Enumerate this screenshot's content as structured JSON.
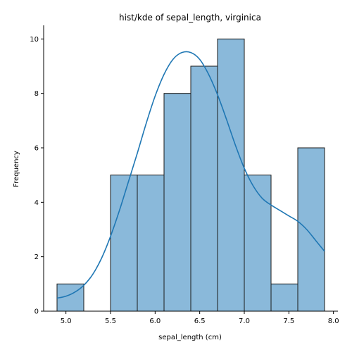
{
  "chart_data": {
    "type": "histogram",
    "title": "hist/kde of sepal_length, virginica",
    "xlabel": "sepal_length (cm)",
    "ylabel": "Frequency",
    "xlim": [
      4.75,
      8.05
    ],
    "ylim": [
      0,
      10.5
    ],
    "xticks": [
      5.0,
      5.5,
      6.0,
      6.5,
      7.0,
      7.5,
      8.0
    ],
    "xtick_labels": [
      "5.0",
      "5.5",
      "6.0",
      "6.5",
      "7.0",
      "7.5",
      "8.0"
    ],
    "yticks": [
      0,
      2,
      4,
      6,
      8,
      10
    ],
    "ytick_labels": [
      "0",
      "2",
      "4",
      "6",
      "8",
      "10"
    ],
    "bins": [
      {
        "start": 4.9,
        "end": 5.2,
        "count": 1
      },
      {
        "start": 5.2,
        "end": 5.5,
        "count": 0
      },
      {
        "start": 5.5,
        "end": 5.8,
        "count": 5
      },
      {
        "start": 5.8,
        "end": 6.1,
        "count": 5
      },
      {
        "start": 6.1,
        "end": 6.4,
        "count": 8
      },
      {
        "start": 6.4,
        "end": 6.7,
        "count": 9
      },
      {
        "start": 6.7,
        "end": 7.0,
        "count": 10
      },
      {
        "start": 7.0,
        "end": 7.3,
        "count": 5
      },
      {
        "start": 7.3,
        "end": 7.6,
        "count": 1
      },
      {
        "start": 7.6,
        "end": 7.9,
        "count": 6
      }
    ],
    "kde": {
      "x": [
        4.9,
        5.0,
        5.1,
        5.2,
        5.3,
        5.4,
        5.5,
        5.6,
        5.7,
        5.8,
        5.9,
        6.0,
        6.1,
        6.2,
        6.3,
        6.4,
        6.5,
        6.6,
        6.7,
        6.8,
        6.9,
        7.0,
        7.1,
        7.2,
        7.3,
        7.4,
        7.5,
        7.6,
        7.7,
        7.8,
        7.9
      ],
      "y": [
        0.48,
        0.55,
        0.7,
        0.95,
        1.35,
        1.95,
        2.75,
        3.7,
        4.75,
        5.8,
        6.9,
        7.9,
        8.7,
        9.25,
        9.5,
        9.5,
        9.25,
        8.7,
        7.95,
        7.05,
        6.1,
        5.25,
        4.6,
        4.15,
        3.9,
        3.7,
        3.5,
        3.3,
        3.0,
        2.6,
        2.2
      ]
    },
    "colors": {
      "bar_fill": "#8ab9da",
      "bar_edge": "#1a1a1a",
      "kde_line": "#1f77b4",
      "axis": "#000000"
    }
  }
}
